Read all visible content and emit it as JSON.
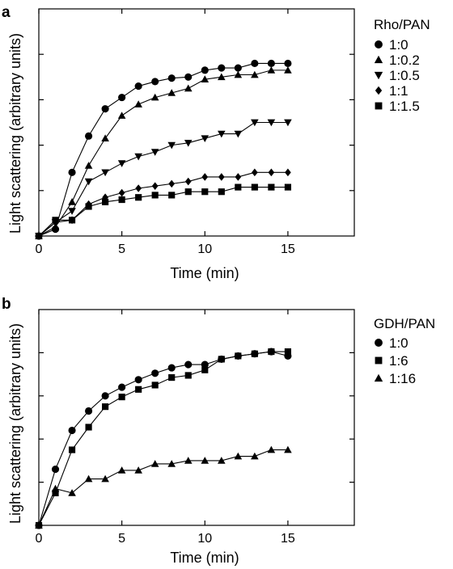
{
  "figure": {
    "panels": [
      {
        "letter": "a",
        "xlabel": "Time (min)",
        "ylabel": "Light scattering (arbitrary units)",
        "legend_title": "Rho/PAN"
      },
      {
        "letter": "b",
        "xlabel": "Time (min)",
        "ylabel": "Light scattering (arbitrary units)",
        "legend_title": "GDH/PAN"
      }
    ]
  },
  "chart_data": [
    {
      "type": "line",
      "xlim": [
        0,
        19
      ],
      "ylim": [
        0,
        10
      ],
      "xticks": [
        0,
        5,
        10,
        15
      ],
      "xlabel": "Time (min)",
      "ylabel": "Light scattering (arbitrary units)",
      "legend_title": "Rho/PAN",
      "legend_position": "right",
      "grid": false,
      "series": [
        {
          "name": "1:0",
          "marker": "circle",
          "x": [
            0,
            1,
            2,
            3,
            4,
            5,
            6,
            7,
            8,
            9,
            10,
            11,
            12,
            13,
            14,
            15
          ],
          "y": [
            0,
            0.3,
            2.8,
            4.4,
            5.6,
            6.1,
            6.6,
            6.8,
            6.95,
            7.0,
            7.3,
            7.4,
            7.4,
            7.6,
            7.6,
            7.6
          ]
        },
        {
          "name": "1:0.2",
          "marker": "triangle-up",
          "x": [
            0,
            1,
            2,
            3,
            4,
            5,
            6,
            7,
            8,
            9,
            10,
            11,
            12,
            13,
            14,
            15
          ],
          "y": [
            0,
            0.4,
            1.5,
            3.1,
            4.3,
            5.3,
            5.8,
            6.1,
            6.3,
            6.5,
            6.9,
            7.0,
            7.1,
            7.1,
            7.3,
            7.3
          ]
        },
        {
          "name": "1:0.5",
          "marker": "triangle-down",
          "x": [
            0,
            1,
            2,
            3,
            4,
            5,
            6,
            7,
            8,
            9,
            10,
            11,
            12,
            13,
            14,
            15
          ],
          "y": [
            0,
            0.6,
            1.1,
            2.4,
            2.8,
            3.2,
            3.5,
            3.7,
            4.0,
            4.1,
            4.3,
            4.5,
            4.5,
            5.0,
            5.0,
            5.0
          ]
        },
        {
          "name": "1:1",
          "marker": "diamond",
          "x": [
            0,
            1,
            2,
            3,
            4,
            5,
            6,
            7,
            8,
            9,
            10,
            11,
            12,
            13,
            14,
            15
          ],
          "y": [
            0,
            0.6,
            0.7,
            1.4,
            1.7,
            1.9,
            2.1,
            2.2,
            2.3,
            2.4,
            2.6,
            2.6,
            2.6,
            2.8,
            2.8,
            2.8
          ]
        },
        {
          "name": "1:1.5",
          "marker": "square",
          "x": [
            0,
            1,
            2,
            3,
            4,
            5,
            6,
            7,
            8,
            9,
            10,
            11,
            12,
            13,
            14,
            15
          ],
          "y": [
            0,
            0.7,
            0.7,
            1.3,
            1.5,
            1.6,
            1.7,
            1.8,
            1.8,
            1.95,
            1.95,
            1.95,
            2.15,
            2.15,
            2.15,
            2.15
          ]
        }
      ]
    },
    {
      "type": "line",
      "xlim": [
        0,
        19
      ],
      "ylim": [
        0,
        10
      ],
      "xticks": [
        0,
        5,
        10,
        15
      ],
      "xlabel": "Time (min)",
      "ylabel": "Light scattering (arbitrary units)",
      "legend_title": "GDH/PAN",
      "legend_position": "right",
      "grid": false,
      "series": [
        {
          "name": "1:0",
          "marker": "circle",
          "x": [
            0,
            1,
            2,
            3,
            4,
            5,
            6,
            7,
            8,
            9,
            10,
            11,
            12,
            13,
            14,
            15
          ],
          "y": [
            0,
            2.6,
            4.4,
            5.3,
            6.0,
            6.4,
            6.75,
            7.05,
            7.3,
            7.45,
            7.45,
            7.7,
            7.85,
            7.95,
            8.05,
            7.85
          ]
        },
        {
          "name": "1:6",
          "marker": "square",
          "x": [
            0,
            1,
            2,
            3,
            4,
            5,
            6,
            7,
            8,
            9,
            10,
            11,
            12,
            13,
            14,
            15
          ],
          "y": [
            0,
            1.5,
            3.5,
            4.55,
            5.5,
            5.95,
            6.3,
            6.5,
            6.85,
            6.95,
            7.2,
            7.7,
            7.85,
            7.95,
            8.05,
            8.05
          ]
        },
        {
          "name": "1:16",
          "marker": "triangle-up",
          "x": [
            0,
            1,
            2,
            3,
            4,
            5,
            6,
            7,
            8,
            9,
            10,
            11,
            12,
            13,
            14,
            15
          ],
          "y": [
            0,
            1.7,
            1.5,
            2.15,
            2.15,
            2.55,
            2.55,
            2.85,
            2.85,
            3.0,
            3.0,
            3.0,
            3.2,
            3.2,
            3.5,
            3.5
          ]
        }
      ]
    }
  ]
}
